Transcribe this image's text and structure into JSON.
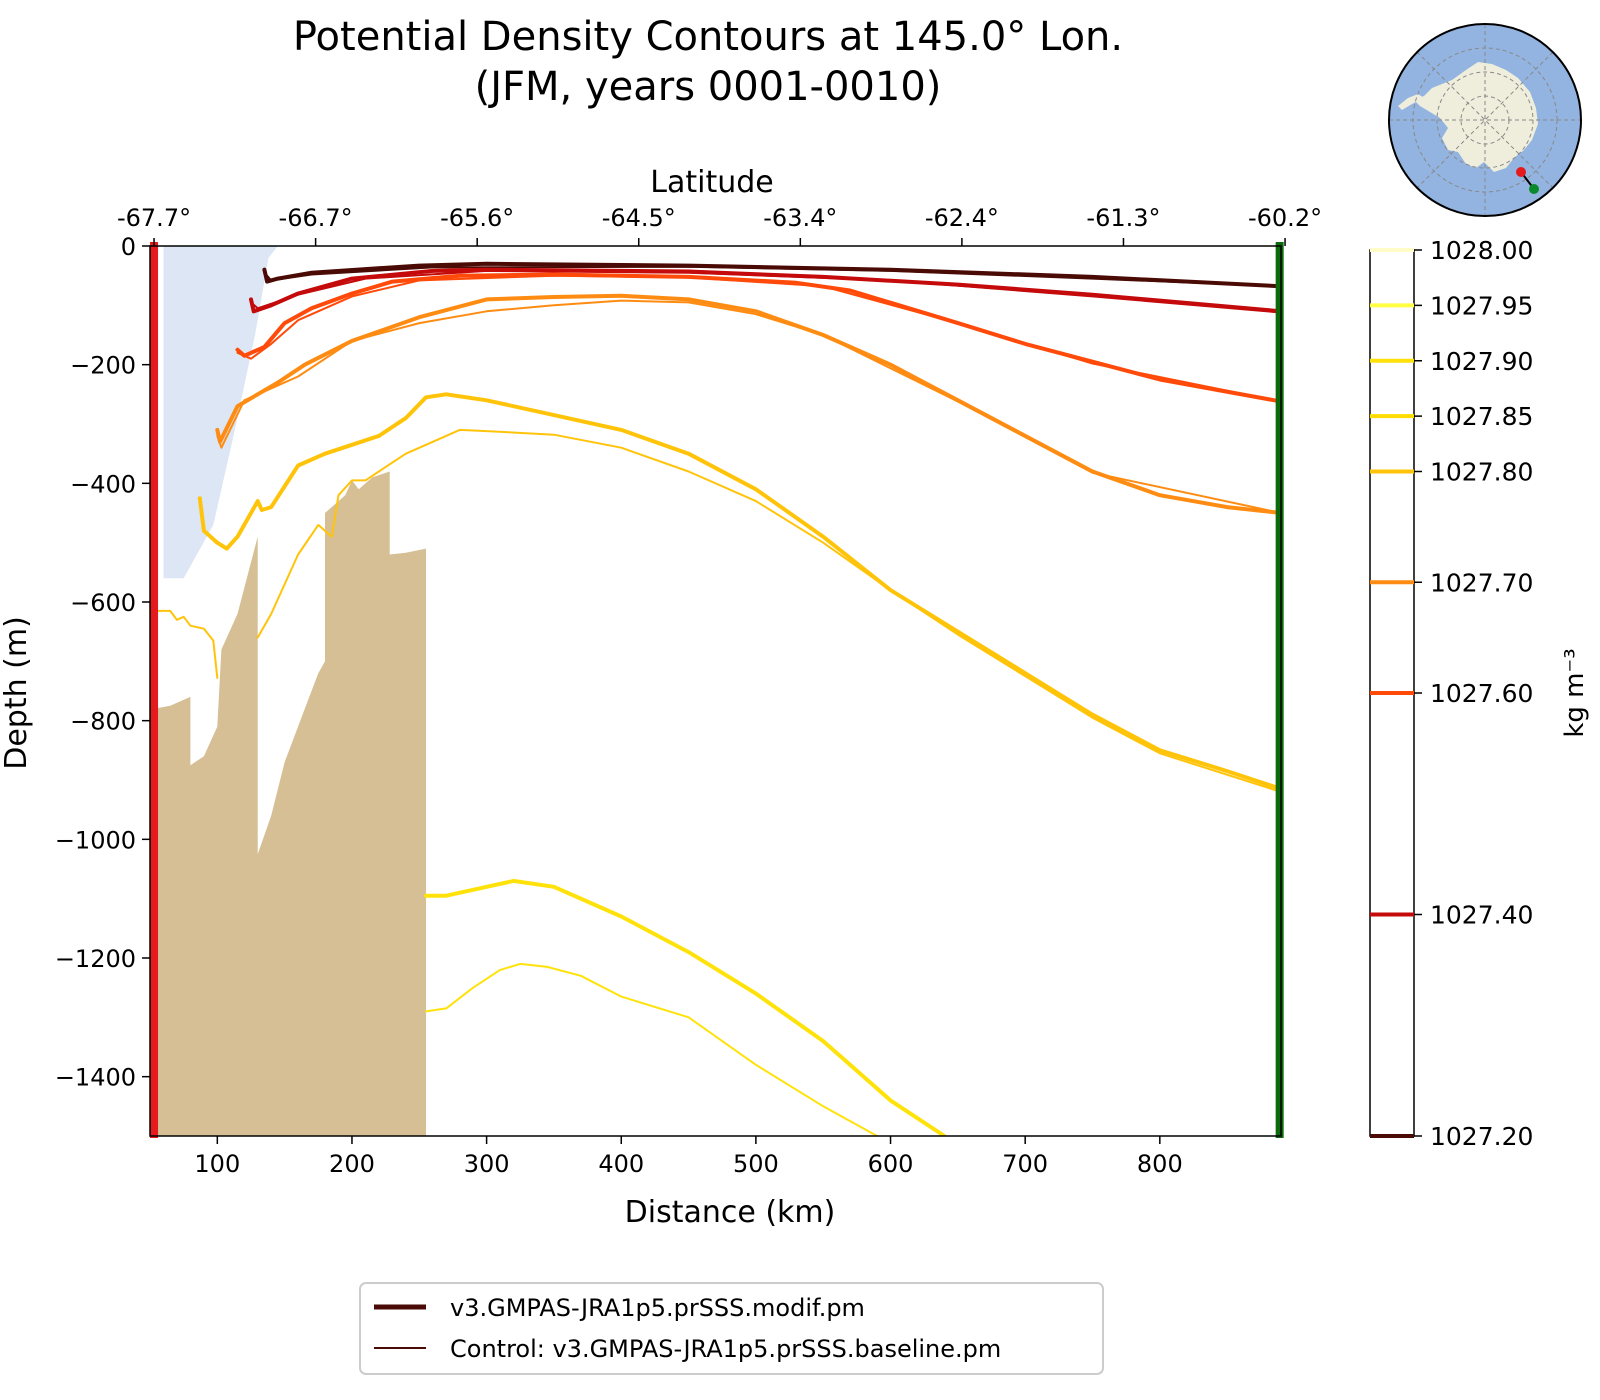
{
  "chart_data": {
    "type": "line",
    "title": "Potential Density Contours at 145.0° Lon.",
    "subtitle": "(JFM, years 0001-0010)",
    "xlabel": "Distance (km)",
    "ylabel": "Depth (m)",
    "top_xlabel": "Latitude",
    "xlim": [
      50,
      890
    ],
    "ylim": [
      -1500,
      0
    ],
    "x_ticks": [
      100,
      200,
      300,
      400,
      500,
      600,
      700,
      800
    ],
    "y_ticks": [
      0,
      -200,
      -400,
      -600,
      -800,
      -1000,
      -1200,
      -1400
    ],
    "y_tick_labels": [
      "0",
      "−200",
      "−400",
      "−600",
      "−800",
      "−1000",
      "−1200",
      "−1400"
    ],
    "top_ticks": [
      {
        "km": 53,
        "label": "-67.7°"
      },
      {
        "km": 173,
        "label": "-66.7°"
      },
      {
        "km": 293,
        "label": "-65.6°"
      },
      {
        "km": 413,
        "label": "-64.5°"
      },
      {
        "km": 533,
        "label": "-63.4°"
      },
      {
        "km": 653,
        "label": "-62.4°"
      },
      {
        "km": 773,
        "label": "-61.3°"
      },
      {
        "km": 893,
        "label": "-60.2°"
      }
    ],
    "section_start_km": 53,
    "section_end_km": 889,
    "start_marker_color": "#e41a1c",
    "end_marker_color": "#0b6b0b",
    "ice_shelf_color": "#dce6f4",
    "bathymetry_color": "#d6bf94",
    "ice_shelf": [
      [
        60,
        0
      ],
      [
        145,
        0
      ],
      [
        138,
        -20
      ],
      [
        128,
        -150
      ],
      [
        112,
        -320
      ],
      [
        97,
        -470
      ],
      [
        75,
        -560
      ],
      [
        60,
        -560
      ]
    ],
    "bathymetry": [
      [
        53,
        -1500
      ],
      [
        53,
        -780
      ],
      [
        65,
        -775
      ],
      [
        80,
        -760
      ],
      [
        80,
        -875
      ],
      [
        90,
        -860
      ],
      [
        100,
        -810
      ],
      [
        103,
        -680
      ],
      [
        115,
        -620
      ],
      [
        130,
        -490
      ],
      [
        130,
        -1025
      ],
      [
        140,
        -960
      ],
      [
        150,
        -870
      ],
      [
        165,
        -780
      ],
      [
        175,
        -720
      ],
      [
        180,
        -700
      ],
      [
        180,
        -450
      ],
      [
        195,
        -420
      ],
      [
        200,
        -395
      ],
      [
        205,
        -410
      ],
      [
        215,
        -390
      ],
      [
        228,
        -380
      ],
      [
        228,
        -520
      ],
      [
        240,
        -517
      ],
      [
        255,
        -510
      ],
      [
        255,
        -1500
      ]
    ],
    "colorbar": {
      "label": "kg m⁻³",
      "min": 1027.2,
      "max": 1028.0,
      "ticks": [
        "1028.00",
        "1027.95",
        "1027.90",
        "1027.85",
        "1027.80",
        "1027.70",
        "1027.60",
        "1027.40",
        "1027.20"
      ]
    },
    "series": [
      {
        "level": 1027.2,
        "color": "#4a0a05",
        "run": "modif",
        "points": [
          [
            135,
            -40
          ],
          [
            137,
            -60
          ],
          [
            145,
            -55
          ],
          [
            170,
            -45
          ],
          [
            250,
            -33
          ],
          [
            300,
            -30
          ],
          [
            450,
            -33
          ],
          [
            600,
            -40
          ],
          [
            750,
            -52
          ],
          [
            890,
            -68
          ]
        ]
      },
      {
        "level": 1027.2,
        "color": "#4a0a05",
        "run": "baseline",
        "points": [
          [
            135,
            -45
          ],
          [
            140,
            -58
          ],
          [
            170,
            -48
          ],
          [
            260,
            -36
          ],
          [
            450,
            -35
          ],
          [
            600,
            -42
          ],
          [
            750,
            -55
          ],
          [
            890,
            -68
          ]
        ]
      },
      {
        "level": 1027.4,
        "color": "#c40a0a",
        "run": "modif",
        "points": [
          [
            125,
            -90
          ],
          [
            127,
            -110
          ],
          [
            140,
            -100
          ],
          [
            160,
            -80
          ],
          [
            200,
            -55
          ],
          [
            260,
            -42
          ],
          [
            300,
            -40
          ],
          [
            450,
            -43
          ],
          [
            550,
            -52
          ],
          [
            650,
            -65
          ],
          [
            750,
            -82
          ],
          [
            890,
            -110
          ]
        ]
      },
      {
        "level": 1027.4,
        "color": "#c40a0a",
        "run": "baseline",
        "points": [
          [
            125,
            -95
          ],
          [
            130,
            -105
          ],
          [
            160,
            -82
          ],
          [
            210,
            -55
          ],
          [
            300,
            -42
          ],
          [
            450,
            -45
          ],
          [
            600,
            -58
          ],
          [
            750,
            -85
          ],
          [
            890,
            -112
          ]
        ]
      },
      {
        "level": 1027.6,
        "color": "#ff4a0a",
        "run": "modif",
        "points": [
          [
            115,
            -175
          ],
          [
            120,
            -185
          ],
          [
            135,
            -170
          ],
          [
            150,
            -130
          ],
          [
            170,
            -105
          ],
          [
            200,
            -80
          ],
          [
            230,
            -60
          ],
          [
            280,
            -50
          ],
          [
            350,
            -48
          ],
          [
            450,
            -52
          ],
          [
            530,
            -62
          ],
          [
            570,
            -75
          ],
          [
            650,
            -130
          ],
          [
            700,
            -165
          ],
          [
            750,
            -195
          ],
          [
            800,
            -225
          ],
          [
            890,
            -262
          ]
        ]
      },
      {
        "level": 1027.6,
        "color": "#ff4a0a",
        "run": "baseline",
        "points": [
          [
            115,
            -180
          ],
          [
            125,
            -190
          ],
          [
            140,
            -165
          ],
          [
            160,
            -125
          ],
          [
            200,
            -85
          ],
          [
            250,
            -58
          ],
          [
            350,
            -50
          ],
          [
            450,
            -53
          ],
          [
            550,
            -68
          ],
          [
            650,
            -130
          ],
          [
            750,
            -198
          ],
          [
            890,
            -262
          ]
        ]
      },
      {
        "level": 1027.7,
        "color": "#ff8c12",
        "run": "modif",
        "points": [
          [
            100,
            -310
          ],
          [
            102,
            -330
          ],
          [
            115,
            -270
          ],
          [
            130,
            -250
          ],
          [
            145,
            -230
          ],
          [
            165,
            -200
          ],
          [
            200,
            -160
          ],
          [
            250,
            -120
          ],
          [
            300,
            -90
          ],
          [
            350,
            -86
          ],
          [
            400,
            -84
          ],
          [
            450,
            -90
          ],
          [
            500,
            -110
          ],
          [
            550,
            -150
          ],
          [
            600,
            -200
          ],
          [
            650,
            -260
          ],
          [
            700,
            -320
          ],
          [
            750,
            -380
          ],
          [
            800,
            -420
          ],
          [
            850,
            -440
          ],
          [
            890,
            -450
          ]
        ]
      },
      {
        "level": 1027.7,
        "color": "#ff8c12",
        "run": "baseline",
        "points": [
          [
            100,
            -320
          ],
          [
            103,
            -340
          ],
          [
            120,
            -260
          ],
          [
            140,
            -240
          ],
          [
            160,
            -220
          ],
          [
            200,
            -160
          ],
          [
            250,
            -130
          ],
          [
            300,
            -110
          ],
          [
            350,
            -100
          ],
          [
            400,
            -92
          ],
          [
            450,
            -95
          ],
          [
            500,
            -115
          ],
          [
            550,
            -150
          ],
          [
            650,
            -262
          ],
          [
            750,
            -382
          ],
          [
            890,
            -450
          ]
        ]
      },
      {
        "level": 1027.8,
        "color": "#ffc40a",
        "run": "modif",
        "points": [
          [
            87,
            -425
          ],
          [
            90,
            -480
          ],
          [
            100,
            -500
          ],
          [
            107,
            -510
          ],
          [
            115,
            -490
          ],
          [
            125,
            -450
          ],
          [
            130,
            -430
          ],
          [
            133,
            -445
          ],
          [
            140,
            -440
          ],
          [
            160,
            -370
          ],
          [
            180,
            -350
          ],
          [
            200,
            -335
          ],
          [
            220,
            -320
          ],
          [
            240,
            -290
          ],
          [
            255,
            -255
          ],
          [
            270,
            -250
          ],
          [
            300,
            -260
          ],
          [
            350,
            -285
          ],
          [
            400,
            -310
          ],
          [
            450,
            -350
          ],
          [
            500,
            -410
          ],
          [
            550,
            -490
          ],
          [
            600,
            -580
          ],
          [
            650,
            -650
          ],
          [
            700,
            -720
          ],
          [
            750,
            -790
          ],
          [
            800,
            -850
          ],
          [
            850,
            -885
          ],
          [
            890,
            -915
          ]
        ]
      },
      {
        "level": 1027.8,
        "color": "#ffc40a",
        "run": "baseline",
        "points": [
          [
            55,
            -615
          ],
          [
            65,
            -615
          ],
          [
            70,
            -630
          ],
          [
            75,
            -625
          ],
          [
            80,
            -640
          ],
          [
            90,
            -645
          ],
          [
            97,
            -665
          ],
          [
            100,
            -728
          ]
        ]
      },
      {
        "level": 1027.8,
        "color": "#ffc40a",
        "run": "baseline",
        "points": [
          [
            130,
            -660
          ],
          [
            140,
            -620
          ],
          [
            160,
            -520
          ],
          [
            175,
            -470
          ],
          [
            185,
            -490
          ],
          [
            190,
            -420
          ],
          [
            200,
            -395
          ],
          [
            210,
            -395
          ],
          [
            220,
            -380
          ],
          [
            240,
            -350
          ],
          [
            260,
            -330
          ],
          [
            280,
            -310
          ],
          [
            300,
            -312
          ],
          [
            350,
            -318
          ],
          [
            400,
            -340
          ],
          [
            450,
            -380
          ],
          [
            500,
            -430
          ],
          [
            550,
            -500
          ],
          [
            600,
            -580
          ],
          [
            650,
            -655
          ],
          [
            700,
            -725
          ],
          [
            750,
            -795
          ],
          [
            800,
            -855
          ],
          [
            890,
            -920
          ]
        ]
      },
      {
        "level": 1027.9,
        "color": "#ffe20a",
        "run": "modif",
        "points": [
          [
            255,
            -1095
          ],
          [
            270,
            -1095
          ],
          [
            290,
            -1085
          ],
          [
            320,
            -1070
          ],
          [
            350,
            -1080
          ],
          [
            400,
            -1130
          ],
          [
            450,
            -1190
          ],
          [
            500,
            -1260
          ],
          [
            550,
            -1340
          ],
          [
            600,
            -1440
          ],
          [
            640,
            -1500
          ]
        ]
      },
      {
        "level": 1027.9,
        "color": "#ffe20a",
        "run": "baseline",
        "points": [
          [
            255,
            -1290
          ],
          [
            270,
            -1285
          ],
          [
            290,
            -1250
          ],
          [
            310,
            -1220
          ],
          [
            325,
            -1210
          ],
          [
            345,
            -1215
          ],
          [
            370,
            -1230
          ],
          [
            400,
            -1265
          ],
          [
            450,
            -1300
          ],
          [
            500,
            -1380
          ],
          [
            550,
            -1450
          ],
          [
            590,
            -1500
          ]
        ]
      }
    ],
    "legend": [
      {
        "label": "v3.GMPAS-JRA1p5.prSSS.modif.pm",
        "color": "#4a0a05",
        "style": "thick"
      },
      {
        "label": "Control: v3.GMPAS-JRA1p5.prSSS.baseline.pm",
        "color": "#4a0a05",
        "style": "thin"
      }
    ]
  },
  "inset_map": {
    "ocean_color": "#93b4e0",
    "land_color": "#efeedd",
    "start_color": "#e41a1c",
    "end_color": "#0b8a2b"
  }
}
